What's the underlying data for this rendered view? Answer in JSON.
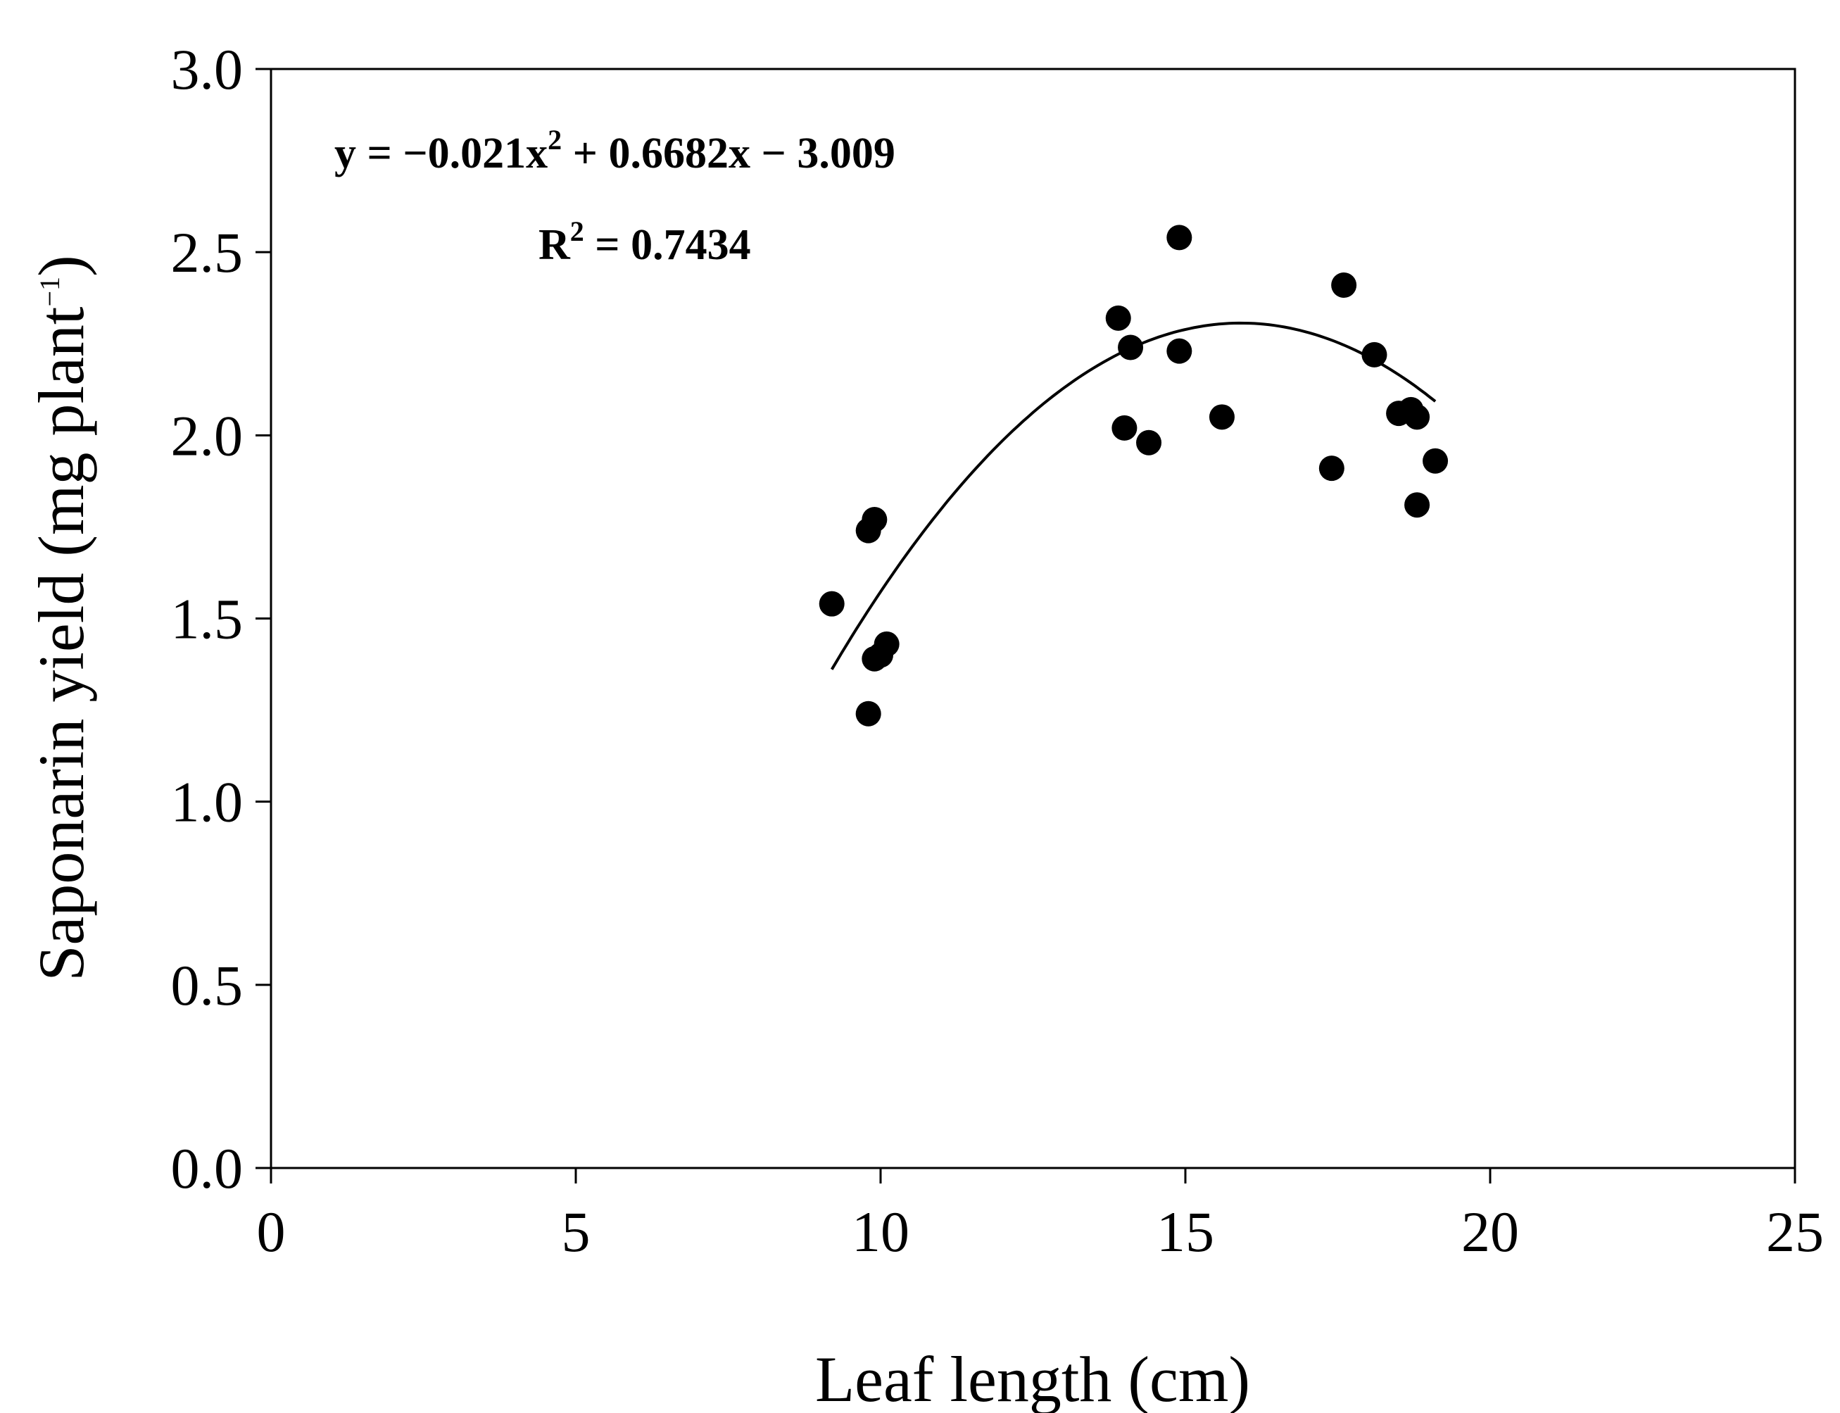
{
  "chart_data": {
    "type": "scatter",
    "xlabel": "Leaf length (cm)",
    "ylabel": {
      "main": "Saponarin yield (mg plant",
      "exponent": "−1",
      "close": ")"
    },
    "xlim": [
      0,
      25
    ],
    "ylim": [
      0.0,
      3.0
    ],
    "x_ticks": [
      "0",
      "5",
      "10",
      "15",
      "20",
      "25"
    ],
    "y_ticks": [
      "0.0",
      "0.5",
      "1.0",
      "1.5",
      "2.0",
      "2.5",
      "3.0"
    ],
    "grid": false,
    "marker_color": "#000000",
    "points": [
      {
        "x": 9.2,
        "y": 1.54
      },
      {
        "x": 9.8,
        "y": 1.74
      },
      {
        "x": 9.9,
        "y": 1.77
      },
      {
        "x": 9.9,
        "y": 1.39
      },
      {
        "x": 10.0,
        "y": 1.4
      },
      {
        "x": 10.1,
        "y": 1.43
      },
      {
        "x": 9.8,
        "y": 1.24
      },
      {
        "x": 13.9,
        "y": 2.32
      },
      {
        "x": 14.0,
        "y": 2.02
      },
      {
        "x": 14.1,
        "y": 2.24
      },
      {
        "x": 14.4,
        "y": 1.98
      },
      {
        "x": 14.9,
        "y": 2.54
      },
      {
        "x": 14.9,
        "y": 2.23
      },
      {
        "x": 15.6,
        "y": 2.05
      },
      {
        "x": 17.4,
        "y": 1.91
      },
      {
        "x": 17.6,
        "y": 2.41
      },
      {
        "x": 18.1,
        "y": 2.22
      },
      {
        "x": 18.5,
        "y": 2.06
      },
      {
        "x": 18.7,
        "y": 2.07
      },
      {
        "x": 18.8,
        "y": 2.05
      },
      {
        "x": 18.8,
        "y": 1.81
      },
      {
        "x": 19.1,
        "y": 1.93
      }
    ],
    "fit": {
      "type": "quadratic",
      "coefficients": {
        "a": -0.021,
        "b": 0.6682,
        "c": -3.009
      },
      "x_range": [
        9.2,
        19.1
      ]
    },
    "annotations": {
      "equation": {
        "parts": [
          "y = −0.021x",
          "2",
          " + 0.6682x − 3.009"
        ]
      },
      "r2": {
        "parts": [
          "R",
          "2",
          " = 0.7434"
        ]
      }
    }
  }
}
